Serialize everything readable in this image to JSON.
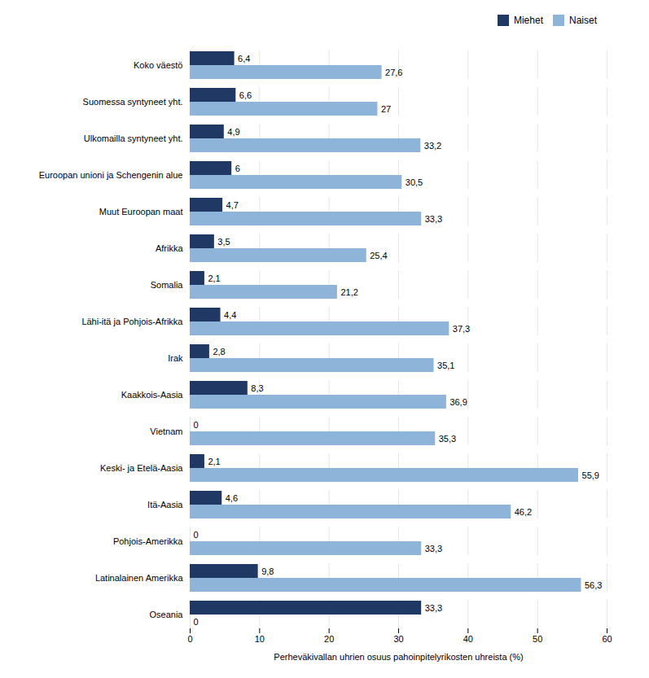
{
  "chart_data": {
    "type": "bar",
    "orientation": "horizontal",
    "categories": [
      "Koko väestö",
      "Suomessa syntyneet yht.",
      "Ulkomailla syntyneet yht.",
      "Euroopan unioni ja Schengenin alue",
      "Muut Euroopan maat",
      "Afrikka",
      "Somalia",
      "Lähi-itä ja Pohjois-Afrikka",
      "Irak",
      "Kaakkois-Aasia",
      "Vietnam",
      "Keski- ja Etelä-Aasia",
      "Itä-Aasia",
      "Pohjois-Amerikka",
      "Latinalainen Amerikka",
      "Oseania"
    ],
    "series": [
      {
        "name": "Miehet",
        "color": "#1f3864",
        "values": [
          6.4,
          6.6,
          4.9,
          6.0,
          4.7,
          3.5,
          2.1,
          4.4,
          2.8,
          8.3,
          0,
          2.1,
          4.6,
          0,
          9.8,
          33.3
        ],
        "value_labels": [
          "6,4",
          "6,6",
          "4,9",
          "6",
          "4,7",
          "3,5",
          "2,1",
          "4,4",
          "2,8",
          "8,3",
          "0",
          "2,1",
          "4,6",
          "0",
          "9,8",
          "33,3"
        ]
      },
      {
        "name": "Naiset",
        "color": "#8eb4d9",
        "values": [
          27.6,
          27.0,
          33.2,
          30.5,
          33.3,
          25.4,
          21.2,
          37.3,
          35.1,
          36.9,
          35.3,
          55.9,
          46.2,
          33.3,
          56.3,
          0
        ],
        "value_labels": [
          "27,6",
          "27",
          "33,2",
          "30,5",
          "33,3",
          "25,4",
          "21,2",
          "37,3",
          "35,1",
          "36,9",
          "35,3",
          "55,9",
          "46,2",
          "33,3",
          "56,3",
          "0"
        ]
      }
    ],
    "xlabel": "Perheväkivallan uhrien osuus pahoinpitelyrikosten uhreista (%)",
    "xlim": [
      0,
      60
    ],
    "xticks": [
      0,
      10,
      20,
      30,
      40,
      50,
      60
    ],
    "grid": true,
    "legend": "upper right",
    "data_labels": true
  }
}
